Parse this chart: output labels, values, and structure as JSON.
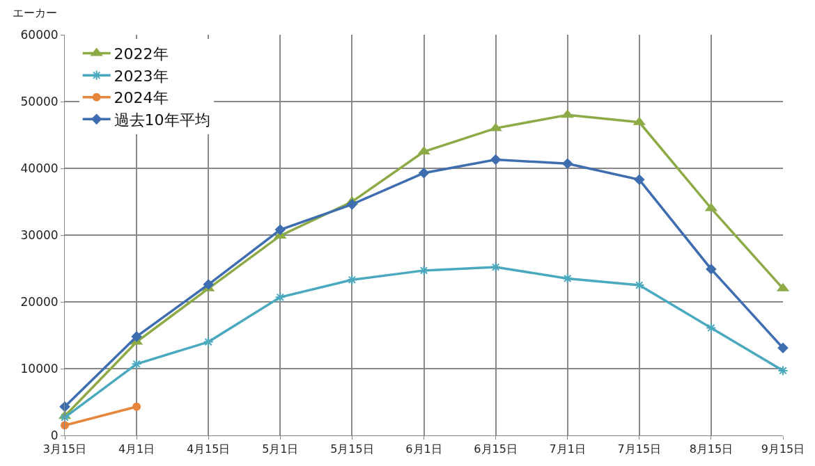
{
  "chart_data": {
    "type": "line",
    "ylabel": "エーカー",
    "categories": [
      "3月15日",
      "4月1日",
      "4月15日",
      "5月1日",
      "5月15日",
      "6月1日",
      "6月15日",
      "7月1日",
      "7月15日",
      "8月15日",
      "9月15日"
    ],
    "series": [
      {
        "name": "2022年",
        "color": "#8cab46",
        "marker": "triangle",
        "values": [
          2900,
          14000,
          22000,
          29900,
          35000,
          42500,
          46000,
          48000,
          46900,
          34000,
          22000
        ]
      },
      {
        "name": "2023年",
        "color": "#4aa9bf",
        "marker": "cross",
        "values": [
          2700,
          10700,
          14000,
          20700,
          23300,
          24700,
          25200,
          23500,
          22500,
          16100,
          9700
        ]
      },
      {
        "name": "2024年",
        "color": "#e5863c",
        "marker": "circle",
        "values": [
          1500,
          4300,
          null,
          null,
          null,
          null,
          null,
          null,
          null,
          null,
          null
        ]
      },
      {
        "name": "過去10年平均",
        "color": "#3e6db0",
        "marker": "diamond",
        "values": [
          4300,
          14800,
          22600,
          30800,
          34600,
          39300,
          41300,
          40700,
          38300,
          24900,
          13100
        ]
      }
    ],
    "ylim": [
      0,
      60000
    ],
    "yticks": [
      0,
      10000,
      20000,
      30000,
      40000,
      50000,
      60000
    ],
    "grid": true,
    "legend": "top left",
    "line_style": "solid"
  }
}
